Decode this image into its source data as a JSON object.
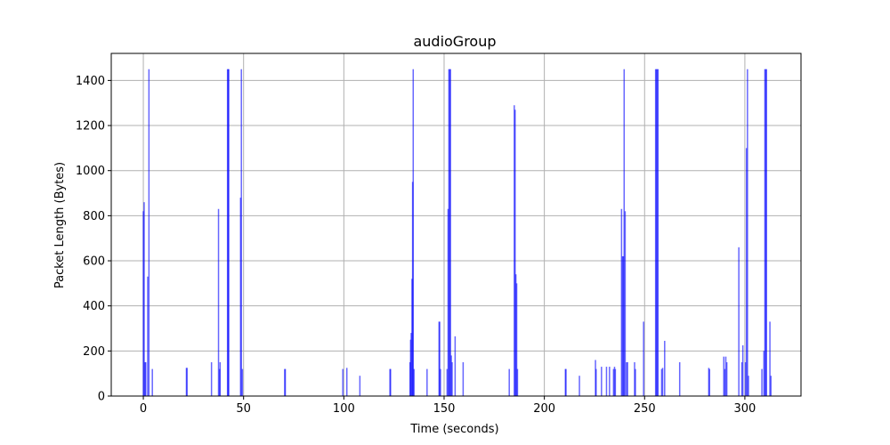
{
  "chart_data": {
    "type": "bar",
    "title": "audioGroup",
    "xlabel": "Time (seconds)",
    "ylabel": "Packet Length (Bytes)",
    "xlim": [
      -16,
      328
    ],
    "ylim": [
      0,
      1520
    ],
    "xticks": [
      0,
      50,
      100,
      150,
      200,
      250,
      300
    ],
    "yticks": [
      0,
      200,
      400,
      600,
      800,
      1000,
      1200,
      1400
    ],
    "grid": true,
    "bar_color": "#0000ff",
    "points": [
      {
        "x": 0.0,
        "y": 820
      },
      {
        "x": 0.4,
        "y": 860
      },
      {
        "x": 0.8,
        "y": 150
      },
      {
        "x": 1.2,
        "y": 150
      },
      {
        "x": 2.2,
        "y": 530
      },
      {
        "x": 2.8,
        "y": 1450
      },
      {
        "x": 4.5,
        "y": 120
      },
      {
        "x": 21.5,
        "y": 125
      },
      {
        "x": 21.8,
        "y": 125
      },
      {
        "x": 34.0,
        "y": 150
      },
      {
        "x": 37.5,
        "y": 830
      },
      {
        "x": 38.0,
        "y": 120
      },
      {
        "x": 38.3,
        "y": 150
      },
      {
        "x": 42.0,
        "y": 1450
      },
      {
        "x": 42.3,
        "y": 1450
      },
      {
        "x": 42.6,
        "y": 1450
      },
      {
        "x": 48.5,
        "y": 880
      },
      {
        "x": 48.9,
        "y": 1450
      },
      {
        "x": 49.4,
        "y": 120
      },
      {
        "x": 70.5,
        "y": 120
      },
      {
        "x": 70.8,
        "y": 120
      },
      {
        "x": 99.5,
        "y": 120
      },
      {
        "x": 101.5,
        "y": 125
      },
      {
        "x": 108.0,
        "y": 90
      },
      {
        "x": 123.0,
        "y": 120
      },
      {
        "x": 123.3,
        "y": 120
      },
      {
        "x": 133.0,
        "y": 150
      },
      {
        "x": 133.3,
        "y": 250
      },
      {
        "x": 133.6,
        "y": 280
      },
      {
        "x": 134.0,
        "y": 520
      },
      {
        "x": 134.3,
        "y": 950
      },
      {
        "x": 134.6,
        "y": 1450
      },
      {
        "x": 135.0,
        "y": 120
      },
      {
        "x": 141.5,
        "y": 120
      },
      {
        "x": 147.5,
        "y": 330
      },
      {
        "x": 147.8,
        "y": 330
      },
      {
        "x": 148.2,
        "y": 120
      },
      {
        "x": 151.5,
        "y": 120
      },
      {
        "x": 152.0,
        "y": 830
      },
      {
        "x": 152.4,
        "y": 1450
      },
      {
        "x": 152.8,
        "y": 1450
      },
      {
        "x": 153.2,
        "y": 1450
      },
      {
        "x": 153.6,
        "y": 180
      },
      {
        "x": 154.0,
        "y": 150
      },
      {
        "x": 155.5,
        "y": 265
      },
      {
        "x": 159.5,
        "y": 150
      },
      {
        "x": 182.5,
        "y": 120
      },
      {
        "x": 185.0,
        "y": 1290
      },
      {
        "x": 185.4,
        "y": 1270
      },
      {
        "x": 185.8,
        "y": 540
      },
      {
        "x": 186.2,
        "y": 500
      },
      {
        "x": 186.6,
        "y": 120
      },
      {
        "x": 210.5,
        "y": 120
      },
      {
        "x": 210.8,
        "y": 120
      },
      {
        "x": 217.5,
        "y": 90
      },
      {
        "x": 225.5,
        "y": 160
      },
      {
        "x": 225.8,
        "y": 120
      },
      {
        "x": 228.5,
        "y": 130
      },
      {
        "x": 231.0,
        "y": 130
      },
      {
        "x": 232.5,
        "y": 130
      },
      {
        "x": 234.5,
        "y": 120
      },
      {
        "x": 235.0,
        "y": 130
      },
      {
        "x": 235.4,
        "y": 120
      },
      {
        "x": 238.5,
        "y": 830
      },
      {
        "x": 239.0,
        "y": 620
      },
      {
        "x": 239.4,
        "y": 620
      },
      {
        "x": 239.8,
        "y": 1450
      },
      {
        "x": 240.3,
        "y": 820
      },
      {
        "x": 241.0,
        "y": 150
      },
      {
        "x": 241.5,
        "y": 150
      },
      {
        "x": 245.0,
        "y": 150
      },
      {
        "x": 245.4,
        "y": 120
      },
      {
        "x": 249.5,
        "y": 330
      },
      {
        "x": 255.5,
        "y": 1450
      },
      {
        "x": 255.9,
        "y": 1450
      },
      {
        "x": 256.3,
        "y": 1450
      },
      {
        "x": 256.7,
        "y": 1450
      },
      {
        "x": 258.5,
        "y": 120
      },
      {
        "x": 259.0,
        "y": 125
      },
      {
        "x": 260.0,
        "y": 245
      },
      {
        "x": 267.5,
        "y": 150
      },
      {
        "x": 282.0,
        "y": 125
      },
      {
        "x": 282.4,
        "y": 120
      },
      {
        "x": 289.5,
        "y": 175
      },
      {
        "x": 290.0,
        "y": 120
      },
      {
        "x": 290.5,
        "y": 175
      },
      {
        "x": 291.0,
        "y": 150
      },
      {
        "x": 297.0,
        "y": 660
      },
      {
        "x": 298.5,
        "y": 150
      },
      {
        "x": 299.0,
        "y": 225
      },
      {
        "x": 300.3,
        "y": 150
      },
      {
        "x": 300.8,
        "y": 1100
      },
      {
        "x": 301.3,
        "y": 1450
      },
      {
        "x": 301.8,
        "y": 90
      },
      {
        "x": 308.5,
        "y": 120
      },
      {
        "x": 309.5,
        "y": 200
      },
      {
        "x": 310.0,
        "y": 1450
      },
      {
        "x": 310.4,
        "y": 1450
      },
      {
        "x": 310.8,
        "y": 1450
      },
      {
        "x": 312.5,
        "y": 330
      },
      {
        "x": 313.0,
        "y": 90
      }
    ]
  }
}
